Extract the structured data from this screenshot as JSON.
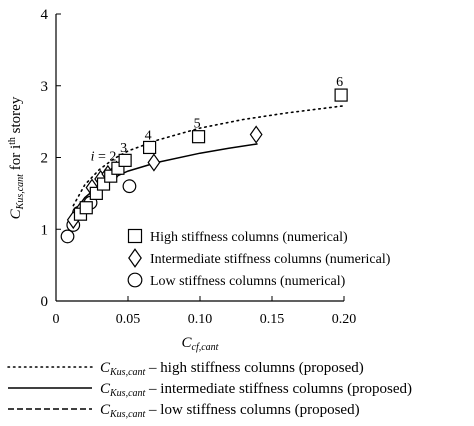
{
  "chart_data": {
    "type": "scatter",
    "xlabel_main": "C",
    "xlabel_sub": "cf,cant",
    "ylabel_main": "C",
    "ylabel_sub": "Kus,cant",
    "ylabel_rest": " for i",
    "ylabel_sup": "th",
    "ylabel_end": " storey",
    "xlim": [
      0,
      0.2
    ],
    "ylim": [
      0,
      4
    ],
    "xticks": [
      0,
      0.05,
      0.1,
      0.15,
      0.2
    ],
    "xtick_labels": [
      "0",
      "0.05",
      "0.10",
      "0.15",
      "0.20"
    ],
    "yticks": [
      0,
      1,
      2,
      3,
      4
    ],
    "ytick_labels": [
      "0",
      "1",
      "2",
      "3",
      "4"
    ],
    "grid": false,
    "series": [
      {
        "name": "High stiffness columns (numerical)",
        "marker": "square",
        "x": [
          0.017,
          0.021,
          0.028,
          0.033,
          0.038,
          0.043,
          0.048,
          0.065,
          0.099,
          0.198
        ],
        "y": [
          1.21,
          1.3,
          1.5,
          1.63,
          1.74,
          1.85,
          1.96,
          2.14,
          2.29,
          2.87
        ]
      },
      {
        "name": "Intermediate stiffness columns (numerical)",
        "marker": "diamond",
        "x": [
          0.012,
          0.017,
          0.025,
          0.031,
          0.036,
          0.042,
          0.068,
          0.139
        ],
        "y": [
          1.13,
          1.26,
          1.58,
          1.7,
          1.77,
          1.83,
          1.93,
          2.32
        ]
      },
      {
        "name": "Low stiffness columns (numerical)",
        "marker": "circle",
        "x": [
          0.008,
          0.012,
          0.016,
          0.024,
          0.051
        ],
        "y": [
          0.9,
          1.06,
          1.23,
          1.37,
          1.6
        ]
      }
    ],
    "curves": [
      {
        "name": "high stiffness columns (proposed)",
        "style": "dotted",
        "x": [
          0.012,
          0.02,
          0.03,
          0.04,
          0.05,
          0.07,
          0.1,
          0.13,
          0.16,
          0.2
        ],
        "y": [
          1.33,
          1.62,
          1.83,
          1.98,
          2.09,
          2.24,
          2.41,
          2.53,
          2.62,
          2.72
        ]
      },
      {
        "name": "intermediate stiffness columns (proposed)",
        "style": "solid",
        "x": [
          0.012,
          0.02,
          0.03,
          0.04,
          0.05,
          0.07,
          0.1,
          0.12,
          0.14
        ],
        "y": [
          1.22,
          1.44,
          1.61,
          1.72,
          1.81,
          1.93,
          2.06,
          2.13,
          2.19
        ]
      },
      {
        "name": "low stiffness columns (proposed)",
        "style": "dashed",
        "x": [
          0.012,
          0.016,
          0.02,
          0.025,
          0.03
        ],
        "y": [
          1.22,
          1.31,
          1.38,
          1.46,
          1.52
        ]
      }
    ],
    "annotations": [
      {
        "text": "i = 2",
        "x": 0.033,
        "y": 1.96
      },
      {
        "text": "3",
        "x": 0.047,
        "y": 2.08
      },
      {
        "text": "4",
        "x": 0.064,
        "y": 2.25
      },
      {
        "text": "5",
        "x": 0.098,
        "y": 2.42
      },
      {
        "text": "6",
        "x": 0.197,
        "y": 3.0
      }
    ],
    "legend_placement": "bottom-right",
    "bottom_legend_prefix": "C",
    "bottom_legend_sub": "Kus,cant",
    "bottom_legend": [
      {
        "style": "dotted",
        "text": " – high stiffness columns (proposed)"
      },
      {
        "style": "solid",
        "text": " – intermediate stiffness columns (proposed)"
      },
      {
        "style": "dashed",
        "text": " – low stiffness columns (proposed)"
      }
    ]
  }
}
